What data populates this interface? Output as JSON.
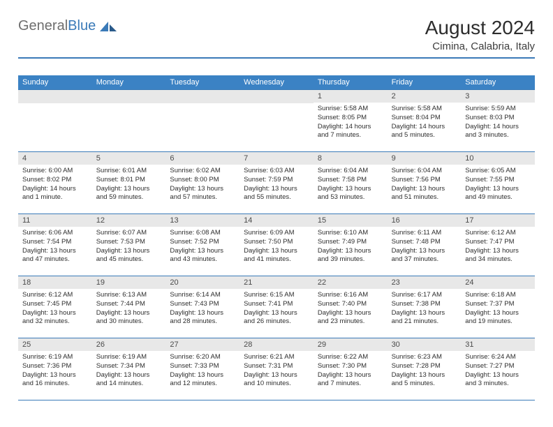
{
  "logo": {
    "text1": "General",
    "text2": "Blue"
  },
  "header": {
    "month": "August 2024",
    "location": "Cimina, Calabria, Italy"
  },
  "colors": {
    "header_bg": "#3b82c4",
    "daynum_bg": "#e8e8e8",
    "border": "#3a7ab8",
    "text": "#2d2d2d",
    "logo_gray": "#6e6e6e",
    "logo_blue": "#3a7ab8"
  },
  "dayNames": [
    "Sunday",
    "Monday",
    "Tuesday",
    "Wednesday",
    "Thursday",
    "Friday",
    "Saturday"
  ],
  "weeks": [
    [
      {
        "n": null
      },
      {
        "n": null
      },
      {
        "n": null
      },
      {
        "n": null
      },
      {
        "n": "1",
        "sunrise": "Sunrise: 5:58 AM",
        "sunset": "Sunset: 8:05 PM",
        "daylight": "Daylight: 14 hours and 7 minutes."
      },
      {
        "n": "2",
        "sunrise": "Sunrise: 5:58 AM",
        "sunset": "Sunset: 8:04 PM",
        "daylight": "Daylight: 14 hours and 5 minutes."
      },
      {
        "n": "3",
        "sunrise": "Sunrise: 5:59 AM",
        "sunset": "Sunset: 8:03 PM",
        "daylight": "Daylight: 14 hours and 3 minutes."
      }
    ],
    [
      {
        "n": "4",
        "sunrise": "Sunrise: 6:00 AM",
        "sunset": "Sunset: 8:02 PM",
        "daylight": "Daylight: 14 hours and 1 minute."
      },
      {
        "n": "5",
        "sunrise": "Sunrise: 6:01 AM",
        "sunset": "Sunset: 8:01 PM",
        "daylight": "Daylight: 13 hours and 59 minutes."
      },
      {
        "n": "6",
        "sunrise": "Sunrise: 6:02 AM",
        "sunset": "Sunset: 8:00 PM",
        "daylight": "Daylight: 13 hours and 57 minutes."
      },
      {
        "n": "7",
        "sunrise": "Sunrise: 6:03 AM",
        "sunset": "Sunset: 7:59 PM",
        "daylight": "Daylight: 13 hours and 55 minutes."
      },
      {
        "n": "8",
        "sunrise": "Sunrise: 6:04 AM",
        "sunset": "Sunset: 7:58 PM",
        "daylight": "Daylight: 13 hours and 53 minutes."
      },
      {
        "n": "9",
        "sunrise": "Sunrise: 6:04 AM",
        "sunset": "Sunset: 7:56 PM",
        "daylight": "Daylight: 13 hours and 51 minutes."
      },
      {
        "n": "10",
        "sunrise": "Sunrise: 6:05 AM",
        "sunset": "Sunset: 7:55 PM",
        "daylight": "Daylight: 13 hours and 49 minutes."
      }
    ],
    [
      {
        "n": "11",
        "sunrise": "Sunrise: 6:06 AM",
        "sunset": "Sunset: 7:54 PM",
        "daylight": "Daylight: 13 hours and 47 minutes."
      },
      {
        "n": "12",
        "sunrise": "Sunrise: 6:07 AM",
        "sunset": "Sunset: 7:53 PM",
        "daylight": "Daylight: 13 hours and 45 minutes."
      },
      {
        "n": "13",
        "sunrise": "Sunrise: 6:08 AM",
        "sunset": "Sunset: 7:52 PM",
        "daylight": "Daylight: 13 hours and 43 minutes."
      },
      {
        "n": "14",
        "sunrise": "Sunrise: 6:09 AM",
        "sunset": "Sunset: 7:50 PM",
        "daylight": "Daylight: 13 hours and 41 minutes."
      },
      {
        "n": "15",
        "sunrise": "Sunrise: 6:10 AM",
        "sunset": "Sunset: 7:49 PM",
        "daylight": "Daylight: 13 hours and 39 minutes."
      },
      {
        "n": "16",
        "sunrise": "Sunrise: 6:11 AM",
        "sunset": "Sunset: 7:48 PM",
        "daylight": "Daylight: 13 hours and 37 minutes."
      },
      {
        "n": "17",
        "sunrise": "Sunrise: 6:12 AM",
        "sunset": "Sunset: 7:47 PM",
        "daylight": "Daylight: 13 hours and 34 minutes."
      }
    ],
    [
      {
        "n": "18",
        "sunrise": "Sunrise: 6:12 AM",
        "sunset": "Sunset: 7:45 PM",
        "daylight": "Daylight: 13 hours and 32 minutes."
      },
      {
        "n": "19",
        "sunrise": "Sunrise: 6:13 AM",
        "sunset": "Sunset: 7:44 PM",
        "daylight": "Daylight: 13 hours and 30 minutes."
      },
      {
        "n": "20",
        "sunrise": "Sunrise: 6:14 AM",
        "sunset": "Sunset: 7:43 PM",
        "daylight": "Daylight: 13 hours and 28 minutes."
      },
      {
        "n": "21",
        "sunrise": "Sunrise: 6:15 AM",
        "sunset": "Sunset: 7:41 PM",
        "daylight": "Daylight: 13 hours and 26 minutes."
      },
      {
        "n": "22",
        "sunrise": "Sunrise: 6:16 AM",
        "sunset": "Sunset: 7:40 PM",
        "daylight": "Daylight: 13 hours and 23 minutes."
      },
      {
        "n": "23",
        "sunrise": "Sunrise: 6:17 AM",
        "sunset": "Sunset: 7:38 PM",
        "daylight": "Daylight: 13 hours and 21 minutes."
      },
      {
        "n": "24",
        "sunrise": "Sunrise: 6:18 AM",
        "sunset": "Sunset: 7:37 PM",
        "daylight": "Daylight: 13 hours and 19 minutes."
      }
    ],
    [
      {
        "n": "25",
        "sunrise": "Sunrise: 6:19 AM",
        "sunset": "Sunset: 7:36 PM",
        "daylight": "Daylight: 13 hours and 16 minutes."
      },
      {
        "n": "26",
        "sunrise": "Sunrise: 6:19 AM",
        "sunset": "Sunset: 7:34 PM",
        "daylight": "Daylight: 13 hours and 14 minutes."
      },
      {
        "n": "27",
        "sunrise": "Sunrise: 6:20 AM",
        "sunset": "Sunset: 7:33 PM",
        "daylight": "Daylight: 13 hours and 12 minutes."
      },
      {
        "n": "28",
        "sunrise": "Sunrise: 6:21 AM",
        "sunset": "Sunset: 7:31 PM",
        "daylight": "Daylight: 13 hours and 10 minutes."
      },
      {
        "n": "29",
        "sunrise": "Sunrise: 6:22 AM",
        "sunset": "Sunset: 7:30 PM",
        "daylight": "Daylight: 13 hours and 7 minutes."
      },
      {
        "n": "30",
        "sunrise": "Sunrise: 6:23 AM",
        "sunset": "Sunset: 7:28 PM",
        "daylight": "Daylight: 13 hours and 5 minutes."
      },
      {
        "n": "31",
        "sunrise": "Sunrise: 6:24 AM",
        "sunset": "Sunset: 7:27 PM",
        "daylight": "Daylight: 13 hours and 3 minutes."
      }
    ]
  ]
}
